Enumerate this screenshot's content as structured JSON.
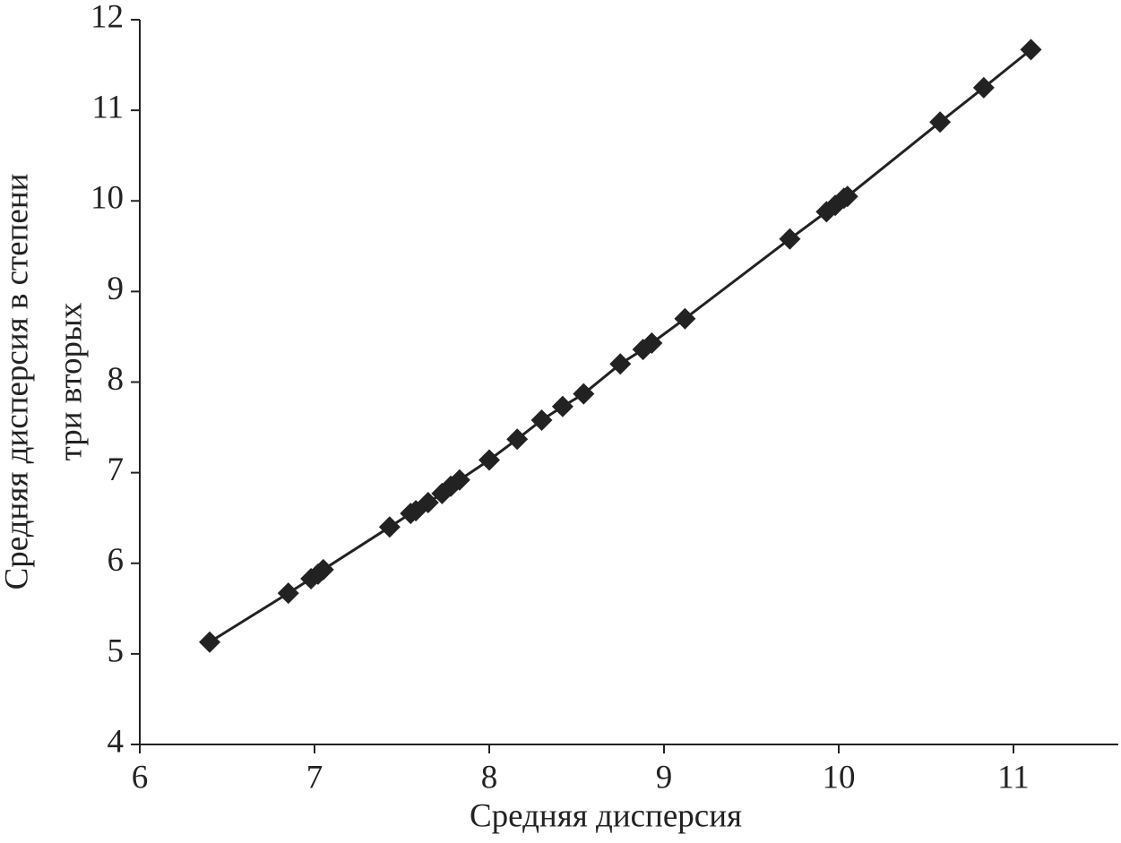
{
  "chart_data": {
    "type": "scatter",
    "xlabel": "Средняя дисперсия",
    "ylabel": [
      "Средняя дисперсия в степени",
      "три вторых"
    ],
    "xlim": [
      6,
      11.6
    ],
    "ylim": [
      4,
      12
    ],
    "xticks": [
      6,
      7,
      8,
      9,
      10,
      11
    ],
    "yticks": [
      4,
      5,
      6,
      7,
      8,
      9,
      10,
      11,
      12
    ],
    "series": [
      {
        "color": "#222222",
        "marker": "diamond",
        "line": true,
        "x": [
          6.4,
          6.85,
          6.98,
          7.02,
          7.05,
          7.43,
          7.55,
          7.58,
          7.65,
          7.73,
          7.78,
          7.83,
          8.0,
          8.16,
          8.3,
          8.42,
          8.54,
          8.75,
          8.88,
          8.93,
          9.12,
          9.72,
          9.93,
          9.98,
          10.03,
          10.05,
          10.58,
          10.83,
          11.1
        ],
        "values": [
          5.13,
          5.67,
          5.83,
          5.88,
          5.93,
          6.4,
          6.55,
          6.58,
          6.67,
          6.77,
          6.85,
          6.92,
          7.14,
          7.37,
          7.58,
          7.73,
          7.87,
          8.2,
          8.36,
          8.43,
          8.7,
          9.58,
          9.88,
          9.95,
          10.03,
          10.05,
          10.87,
          11.25,
          11.67
        ]
      }
    ]
  }
}
